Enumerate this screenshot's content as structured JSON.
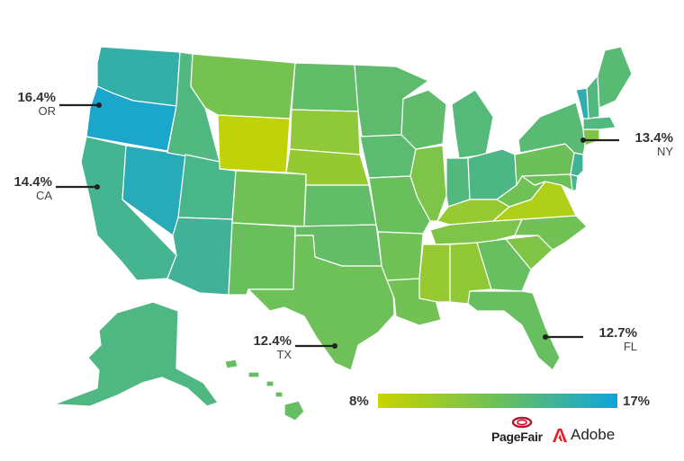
{
  "colors": {
    "low": "#c8d400",
    "mid": "#6cc05a",
    "high": "#0fa3dc",
    "adobe_red": "#e31b23",
    "pagefair_red": "#c8102e"
  },
  "legend": {
    "min_label": "8%",
    "max_label": "17%",
    "min": 8,
    "max": 17
  },
  "callouts": [
    {
      "state": "OR",
      "value_label": "16.4%",
      "abbr": "OR"
    },
    {
      "state": "CA",
      "value_label": "14.4%",
      "abbr": "CA"
    },
    {
      "state": "NY",
      "value_label": "13.4%",
      "abbr": "NY"
    },
    {
      "state": "TX",
      "value_label": "12.4%",
      "abbr": "TX"
    },
    {
      "state": "FL",
      "value_label": "12.7%",
      "abbr": "FL"
    }
  ],
  "brands": {
    "pagefair": "PageFair",
    "adobe": "Adobe"
  },
  "state_values": {
    "WA": 15.2,
    "OR": 16.4,
    "CA": 14.4,
    "NV": 15.8,
    "ID": 13.8,
    "MT": 12.0,
    "WY": 8.4,
    "UT": 14.2,
    "AZ": 14.6,
    "CO": 12.3,
    "NM": 12.6,
    "ND": 13.0,
    "SD": 10.8,
    "NE": 10.5,
    "KS": 13.0,
    "OK": 12.9,
    "TX": 12.4,
    "MN": 13.2,
    "IA": 13.3,
    "MO": 12.6,
    "AR": 12.3,
    "LA": 12.2,
    "WI": 13.1,
    "IL": 11.6,
    "MI": 13.6,
    "IN": 13.7,
    "OH": 14.0,
    "KY": 10.4,
    "TN": 11.6,
    "MS": 10.4,
    "AL": 10.7,
    "GA": 12.7,
    "FL": 12.7,
    "SC": 11.5,
    "NC": 12.2,
    "VA": 9.2,
    "WV": 12.3,
    "PA": 12.5,
    "NY": 13.4,
    "VT": 15.4,
    "NH": 13.8,
    "ME": 13.4,
    "MA": 13.8,
    "CT": 11.5,
    "NJ": 14.6,
    "DE": 14.2,
    "MD": 12.5,
    "AK": 13.9,
    "HI": 12.8
  }
}
